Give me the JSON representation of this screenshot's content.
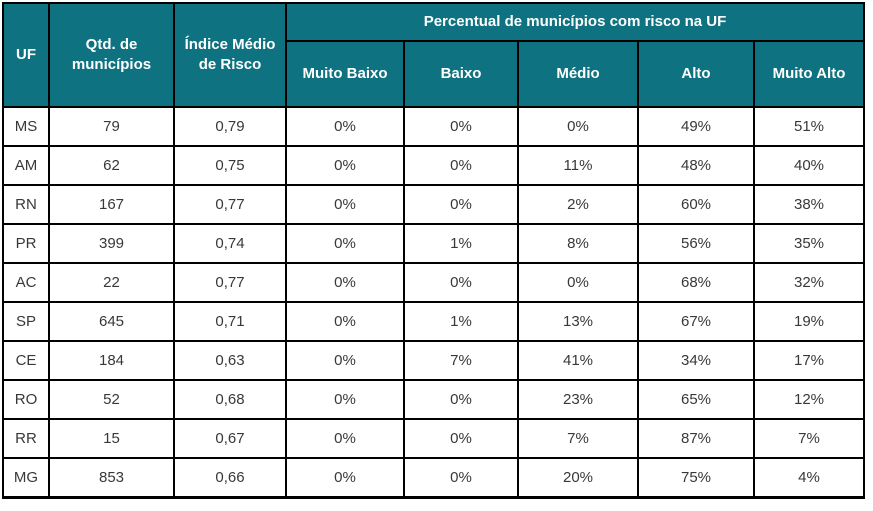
{
  "colors": {
    "header_bg": "#0e7280",
    "header_text": "#ffffff",
    "border": "#000000",
    "cell_text": "#383838"
  },
  "chart_data": {
    "type": "table",
    "header": {
      "uf": "UF",
      "qtd_municipios": "Qtd. de municípios",
      "indice_medio": "Índice Médio de Risco",
      "group_label": "Percentual de municípios com risco na UF",
      "risk_levels": [
        "Muito Baixo",
        "Baixo",
        "Médio",
        "Alto",
        "Muito Alto"
      ]
    },
    "rows": [
      {
        "uf": "MS",
        "qtd": "79",
        "indice": "0,79",
        "muito_baixo": "0%",
        "baixo": "0%",
        "medio": "0%",
        "alto": "49%",
        "muito_alto": "51%"
      },
      {
        "uf": "AM",
        "qtd": "62",
        "indice": "0,75",
        "muito_baixo": "0%",
        "baixo": "0%",
        "medio": "11%",
        "alto": "48%",
        "muito_alto": "40%"
      },
      {
        "uf": "RN",
        "qtd": "167",
        "indice": "0,77",
        "muito_baixo": "0%",
        "baixo": "0%",
        "medio": "2%",
        "alto": "60%",
        "muito_alto": "38%"
      },
      {
        "uf": "PR",
        "qtd": "399",
        "indice": "0,74",
        "muito_baixo": "0%",
        "baixo": "1%",
        "medio": "8%",
        "alto": "56%",
        "muito_alto": "35%"
      },
      {
        "uf": "AC",
        "qtd": "22",
        "indice": "0,77",
        "muito_baixo": "0%",
        "baixo": "0%",
        "medio": "0%",
        "alto": "68%",
        "muito_alto": "32%"
      },
      {
        "uf": "SP",
        "qtd": "645",
        "indice": "0,71",
        "muito_baixo": "0%",
        "baixo": "1%",
        "medio": "13%",
        "alto": "67%",
        "muito_alto": "19%"
      },
      {
        "uf": "CE",
        "qtd": "184",
        "indice": "0,63",
        "muito_baixo": "0%",
        "baixo": "7%",
        "medio": "41%",
        "alto": "34%",
        "muito_alto": "17%"
      },
      {
        "uf": "RO",
        "qtd": "52",
        "indice": "0,68",
        "muito_baixo": "0%",
        "baixo": "0%",
        "medio": "23%",
        "alto": "65%",
        "muito_alto": "12%"
      },
      {
        "uf": "RR",
        "qtd": "15",
        "indice": "0,67",
        "muito_baixo": "0%",
        "baixo": "0%",
        "medio": "7%",
        "alto": "87%",
        "muito_alto": "7%"
      },
      {
        "uf": "MG",
        "qtd": "853",
        "indice": "0,66",
        "muito_baixo": "0%",
        "baixo": "0%",
        "medio": "20%",
        "alto": "75%",
        "muito_alto": "4%"
      }
    ]
  }
}
